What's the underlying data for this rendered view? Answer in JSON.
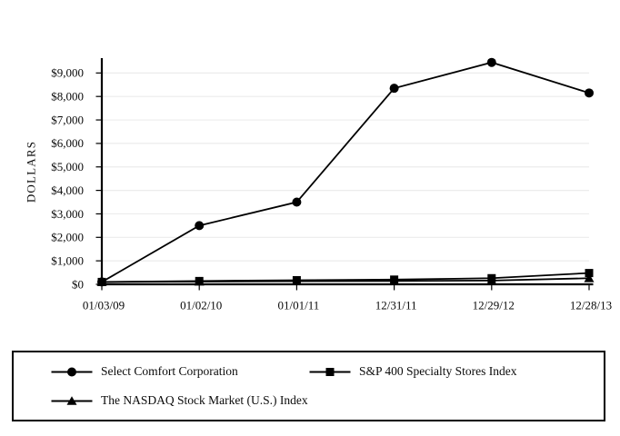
{
  "chart_data": {
    "type": "line",
    "title": "",
    "xlabel": "",
    "ylabel": "DOLLARS",
    "categories": [
      "01/03/09",
      "01/02/10",
      "01/01/11",
      "12/31/11",
      "12/29/12",
      "12/28/13"
    ],
    "series": [
      {
        "name": "Select Comfort Corporation",
        "marker": "circle",
        "values": [
          100,
          2500,
          3500,
          8350,
          9450,
          8150
        ]
      },
      {
        "name": "S&P 400 Specialty Stores Index",
        "marker": "square",
        "values": [
          100,
          140,
          175,
          200,
          260,
          480
        ]
      },
      {
        "name": "The NASDAQ Stock Market (U.S.) Index",
        "marker": "triangle",
        "values": [
          100,
          115,
          130,
          140,
          160,
          260
        ]
      }
    ],
    "ylim": [
      0,
      9700
    ],
    "y_tick_step": 1000,
    "y_tick_labels": [
      "$0",
      "$1,000",
      "$2,000",
      "$3,000",
      "$4,000",
      "$5,000",
      "$6,000",
      "$7,000",
      "$8,000",
      "$9,000"
    ],
    "grid": "horizontal",
    "legend_position": "bottom-box",
    "colors": {
      "series": "#000000",
      "axis": "#000000",
      "grid": "#ececec",
      "background": "#ffffff",
      "text": "#0a0a0a"
    }
  }
}
